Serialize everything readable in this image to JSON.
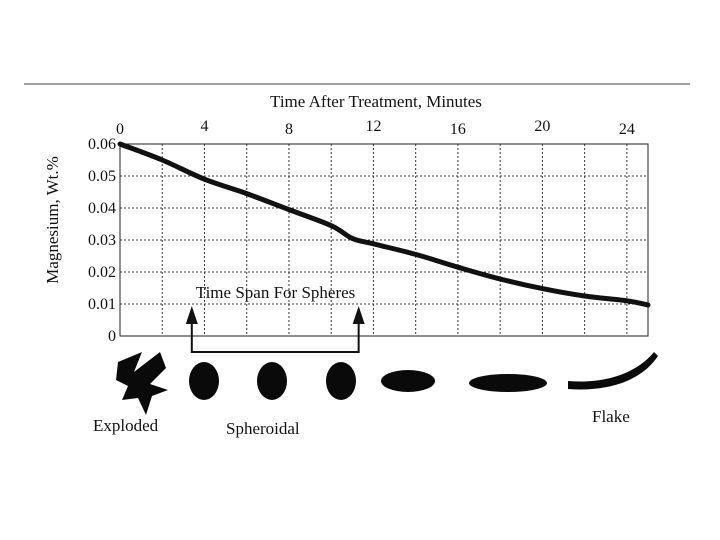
{
  "chart_data": {
    "type": "line",
    "title": "Time After Treatment, Minutes",
    "xlabel": "Time After Treatment, Minutes",
    "ylabel": "Magnesium, Wt.%",
    "x_ticks": [
      "0",
      "4",
      "8",
      "12",
      "16",
      "20",
      "24"
    ],
    "y_ticks": [
      "0",
      "0.01",
      "0.02",
      "0.03",
      "0.04",
      "0.05",
      "0.06"
    ],
    "xlim": [
      0,
      25
    ],
    "ylim": [
      0,
      0.06
    ],
    "grid": true,
    "grid_style": "dotted",
    "series": [
      {
        "x": [
          0,
          2,
          4,
          6,
          8,
          10,
          11,
          12,
          14,
          16,
          18,
          20,
          22,
          24,
          25
        ],
        "y": [
          0.06,
          0.055,
          0.049,
          0.0445,
          0.0395,
          0.0345,
          0.0305,
          0.0288,
          0.0255,
          0.0215,
          0.0178,
          0.0148,
          0.0125,
          0.011,
          0.0097
        ],
        "color": "#111111"
      }
    ],
    "annotations": {
      "time_span_label": "Time Span For Spheres",
      "time_span_x": [
        3.4,
        11.3
      ],
      "shape_labels": {
        "exploded": "Exploded",
        "spheroidal": "Spheroidal",
        "flake": "Flake"
      }
    }
  }
}
